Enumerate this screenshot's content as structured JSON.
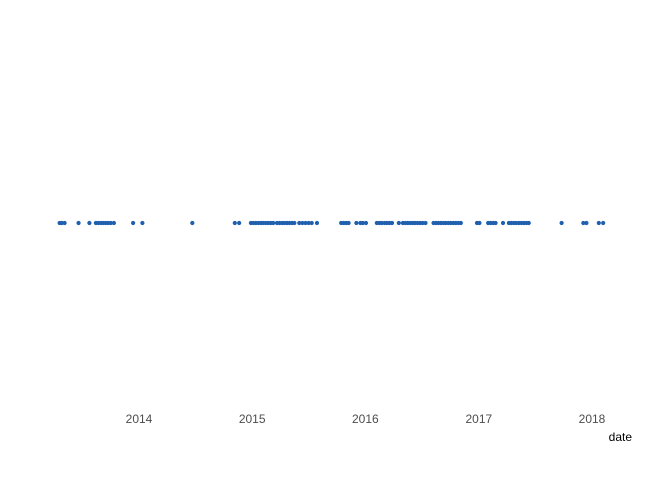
{
  "chart_data": {
    "type": "scatter",
    "title": "",
    "xlabel": "date",
    "ylabel": "",
    "x_axis_type": "date",
    "xlim": [
      "2013-04-01",
      "2018-03-01"
    ],
    "x_ticks": [
      "2014",
      "2015",
      "2016",
      "2017",
      "2018"
    ],
    "grid": false,
    "point_color": "#1F5FAE",
    "y_value": 0,
    "x": [
      "2013-04-20",
      "2013-04-27",
      "2013-05-06",
      "2013-06-20",
      "2013-07-25",
      "2013-08-15",
      "2013-08-23",
      "2013-08-31",
      "2013-09-08",
      "2013-09-16",
      "2013-09-24",
      "2013-10-02",
      "2013-10-12",
      "2013-12-13",
      "2014-01-12",
      "2014-06-22",
      "2014-11-06",
      "2014-11-20",
      "2014-12-28",
      "2015-01-05",
      "2015-01-13",
      "2015-01-21",
      "2015-01-29",
      "2015-02-06",
      "2015-02-14",
      "2015-02-22",
      "2015-03-02",
      "2015-03-10",
      "2015-03-22",
      "2015-03-30",
      "2015-04-07",
      "2015-04-15",
      "2015-04-23",
      "2015-05-01",
      "2015-05-09",
      "2015-05-17",
      "2015-06-02",
      "2015-06-12",
      "2015-06-22",
      "2015-07-02",
      "2015-07-12",
      "2015-07-29",
      "2015-10-15",
      "2015-10-23",
      "2015-10-31",
      "2015-11-08",
      "2015-12-03",
      "2015-12-16",
      "2015-12-24",
      "2016-01-03",
      "2016-02-07",
      "2016-02-15",
      "2016-02-23",
      "2016-03-03",
      "2016-03-11",
      "2016-03-19",
      "2016-03-27",
      "2016-04-18",
      "2016-05-01",
      "2016-05-09",
      "2016-05-17",
      "2016-05-25",
      "2016-06-02",
      "2016-06-10",
      "2016-06-18",
      "2016-06-26",
      "2016-07-04",
      "2016-07-13",
      "2016-08-08",
      "2016-08-16",
      "2016-08-24",
      "2016-09-01",
      "2016-09-09",
      "2016-09-17",
      "2016-09-25",
      "2016-10-03",
      "2016-10-11",
      "2016-10-19",
      "2016-10-27",
      "2016-11-04",
      "2016-12-26",
      "2017-01-03",
      "2017-01-31",
      "2017-02-08",
      "2017-02-16",
      "2017-02-24",
      "2017-03-20",
      "2017-04-08",
      "2017-04-16",
      "2017-04-24",
      "2017-05-02",
      "2017-05-10",
      "2017-05-18",
      "2017-05-26",
      "2017-06-03",
      "2017-06-11",
      "2017-09-25",
      "2017-12-04",
      "2017-12-14",
      "2018-01-23",
      "2018-02-06"
    ]
  }
}
